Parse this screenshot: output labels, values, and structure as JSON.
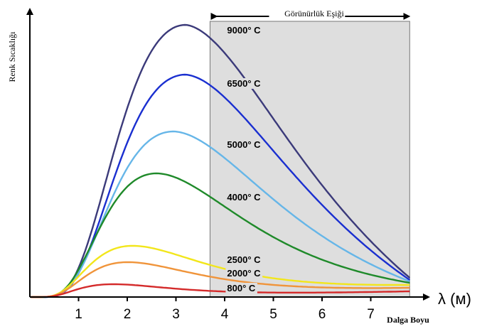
{
  "chart_data": {
    "type": "line",
    "title": "",
    "xlabel_symbol": "λ (м)",
    "xlabel_text": "Dalga Boyu",
    "ylabel": "Renk Sıcaklığı",
    "xlim": [
      0,
      7.8
    ],
    "x_ticks": [
      "1",
      "2",
      "3",
      "4",
      "5",
      "6",
      "7"
    ],
    "grid": false,
    "visible_band": {
      "label": "Görünürlük Eşiği",
      "x_start": 3.7,
      "x_end": 7.8
    },
    "series": [
      {
        "name": "9000° C",
        "color": "#3b3a7a",
        "peak_x": 3.2,
        "peak_y": 383,
        "tail_y": 27,
        "label_x": 4.05,
        "label_y": 376
      },
      {
        "name": "6500° C",
        "color": "#1a2fd0",
        "peak_x": 3.2,
        "peak_y": 313,
        "tail_y": 24,
        "label_x": 4.05,
        "label_y": 301
      },
      {
        "name": "5000° C",
        "color": "#66b6e8",
        "peak_x": 2.95,
        "peak_y": 233,
        "tail_y": 22,
        "label_x": 4.05,
        "label_y": 215
      },
      {
        "name": "4000° C",
        "color": "#1f8a2a",
        "peak_x": 2.6,
        "peak_y": 174,
        "tail_y": 20,
        "label_x": 4.05,
        "label_y": 141
      },
      {
        "name": "2500° C",
        "color": "#f2e61b",
        "peak_x": 2.1,
        "peak_y": 72,
        "tail_y": 17,
        "label_x": 4.05,
        "label_y": 53
      },
      {
        "name": "2000° C",
        "color": "#f0943a",
        "peak_x": 2.0,
        "peak_y": 49,
        "tail_y": 13,
        "label_x": 4.05,
        "label_y": 34
      },
      {
        "name": "800° C",
        "color": "#d42a2a",
        "peak_x": 1.7,
        "peak_y": 18,
        "tail_y": 8,
        "label_x": 4.05,
        "label_y": 13
      }
    ]
  }
}
